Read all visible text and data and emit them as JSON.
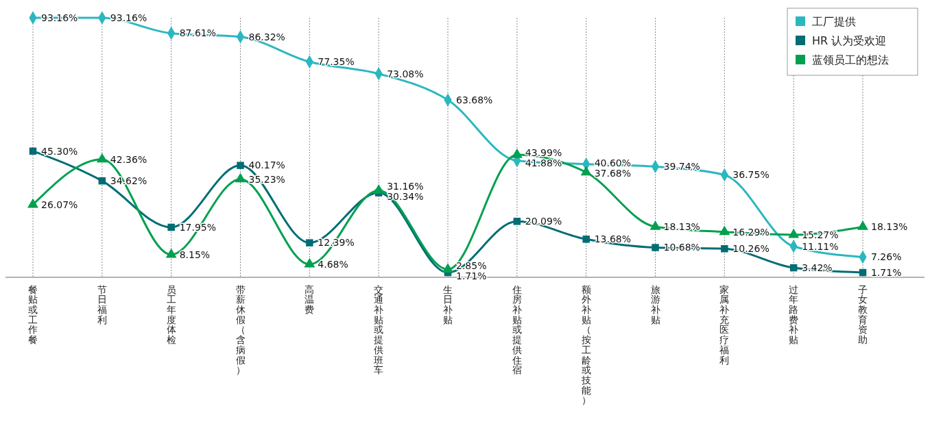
{
  "chart_data": {
    "type": "line",
    "categories": [
      "餐贴或工作餐",
      "节日福利",
      "员工年度体检",
      "带薪休假（含病假）",
      "高温费",
      "交通补贴或提供班车",
      "生日补贴",
      "住房补贴或提供住宿",
      "额外补贴（按工龄或技能）",
      "旅游补贴",
      "家属补充医疗福利",
      "过年路费补贴",
      "子女教育资助"
    ],
    "series": [
      {
        "name": "工厂提供",
        "color": "#2bb7bf",
        "marker": "diamond",
        "values": [
          93.16,
          93.16,
          87.61,
          86.32,
          77.35,
          73.08,
          63.68,
          41.88,
          40.6,
          39.74,
          36.75,
          11.11,
          7.26
        ],
        "value_labels": [
          "93.16%",
          "93.16%",
          "87.61%",
          "86.32%",
          "77.35%",
          "73.08%",
          "63.68%",
          "41.88%",
          "40.60%",
          "39.74%",
          "36.75%",
          "11.11%",
          "7.26%"
        ]
      },
      {
        "name": "HR 认为受欢迎",
        "color": "#006d74",
        "marker": "square",
        "values": [
          45.3,
          34.62,
          17.95,
          40.17,
          12.39,
          30.34,
          1.71,
          20.09,
          13.68,
          10.68,
          10.26,
          3.42,
          1.71
        ],
        "value_labels": [
          "45.30%",
          "34.62%",
          "17.95%",
          "40.17%",
          "12.39%",
          "30.34%",
          "1.71%",
          "20.09%",
          "13.68%",
          "10.68%",
          "10.26%",
          "3.42%",
          "1.71%"
        ]
      },
      {
        "name": "蓝领员工的想法",
        "color": "#00a050",
        "marker": "triangle",
        "values": [
          26.07,
          42.36,
          8.15,
          35.23,
          4.68,
          31.16,
          2.85,
          43.99,
          37.68,
          18.13,
          16.29,
          15.27,
          18.13
        ],
        "value_labels": [
          "26.07%",
          "42.36%",
          "8.15%",
          "35.23%",
          "4.68%",
          "31.16%",
          "2.85%",
          "43.99%",
          "37.68%",
          "18.13%",
          "16.29%",
          "15.27%",
          "18.13%"
        ]
      }
    ],
    "tick_labels": "x",
    "grid": "x",
    "legend": "top right",
    "line_style": "solid"
  }
}
